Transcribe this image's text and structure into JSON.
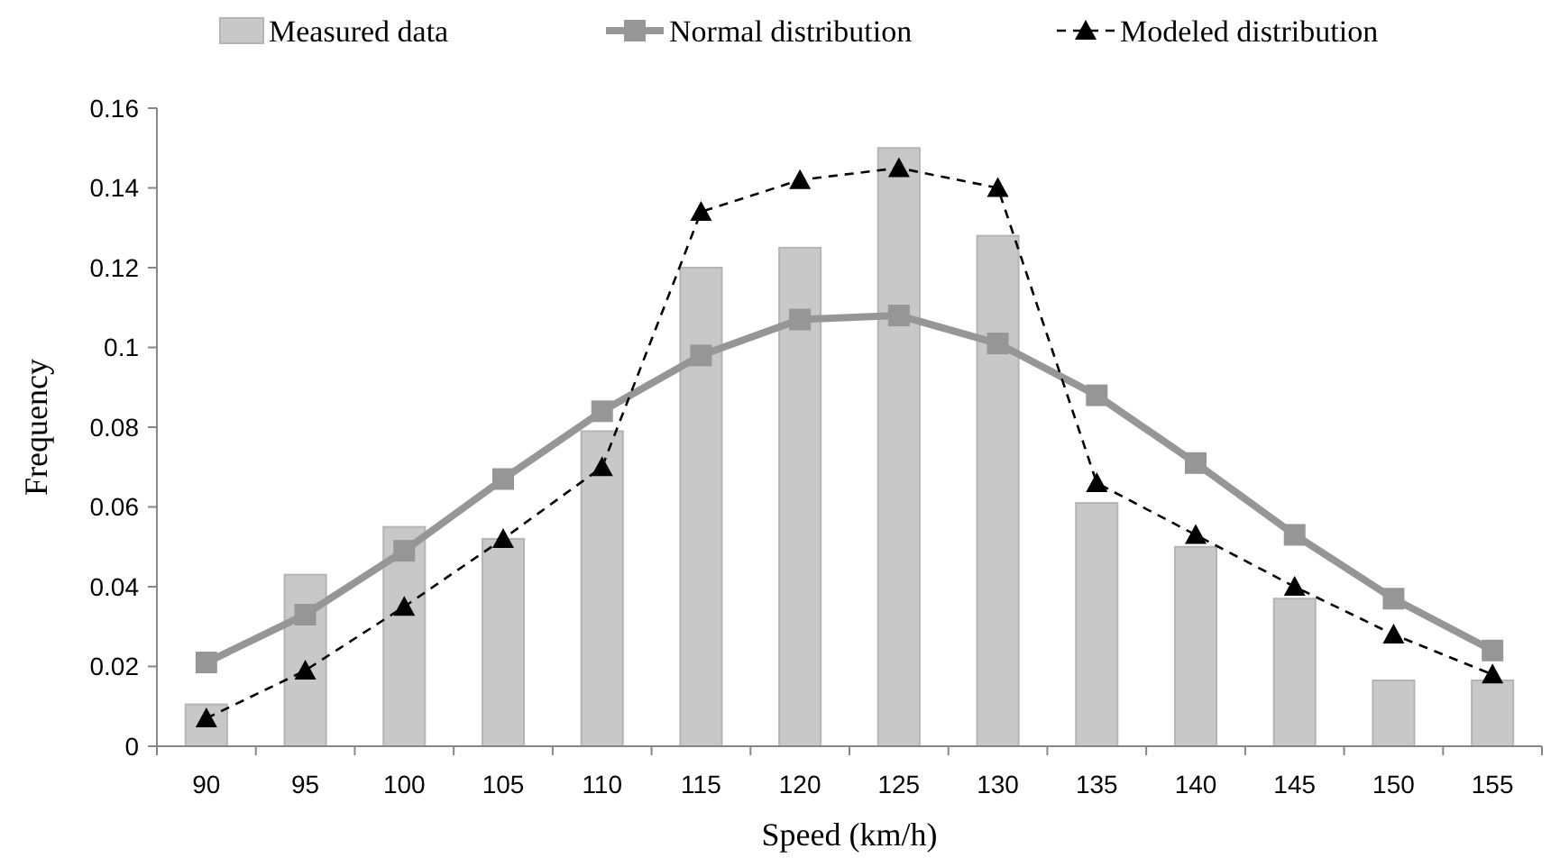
{
  "chart_data": {
    "type": "bar",
    "xlabel": "Speed (km/h)",
    "ylabel": "Frequency",
    "categories": [
      "90",
      "95",
      "100",
      "105",
      "110",
      "115",
      "120",
      "125",
      "130",
      "135",
      "140",
      "145",
      "150",
      "155"
    ],
    "series": [
      {
        "name": "Measured data",
        "color": "#c8c8c8",
        "values": [
          0.0105,
          0.043,
          0.055,
          0.052,
          0.079,
          0.12,
          0.125,
          0.15,
          0.128,
          0.061,
          0.05,
          0.037,
          0.0165,
          0.0165
        ]
      },
      {
        "name": "Normal distribution",
        "type": "line",
        "color": "#969696",
        "marker": "square",
        "line_style": "solid",
        "values": [
          0.021,
          0.033,
          0.049,
          0.067,
          0.084,
          0.098,
          0.107,
          0.108,
          0.101,
          0.088,
          0.071,
          0.053,
          0.037,
          0.024
        ]
      },
      {
        "name": "Modeled distribution",
        "type": "line",
        "color": "#000000",
        "marker": "triangle",
        "line_style": "dashed",
        "values": [
          0.007,
          0.019,
          0.035,
          0.052,
          0.07,
          0.134,
          0.142,
          0.145,
          0.14,
          0.066,
          0.053,
          0.04,
          0.028,
          0.018
        ]
      }
    ],
    "ylim": [
      0,
      0.16
    ],
    "yticks": [
      0,
      0.02,
      0.04,
      0.06,
      0.08,
      0.1,
      0.12,
      0.14,
      0.16
    ],
    "grid": false,
    "legend": "top"
  }
}
